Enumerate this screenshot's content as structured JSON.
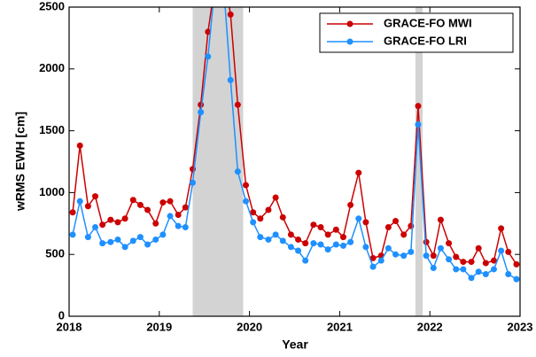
{
  "chart_data": {
    "type": "line",
    "x_label": "Year",
    "y_label": "wRMS EWH [cm]",
    "x": [
      2018.04,
      2018.12,
      2018.21,
      2018.29,
      2018.37,
      2018.46,
      2018.54,
      2018.62,
      2018.71,
      2018.79,
      2018.87,
      2018.96,
      2019.04,
      2019.12,
      2019.21,
      2019.29,
      2019.37,
      2019.46,
      2019.54,
      2019.62,
      2019.71,
      2019.79,
      2019.87,
      2019.96,
      2020.04,
      2020.12,
      2020.21,
      2020.29,
      2020.37,
      2020.46,
      2020.54,
      2020.62,
      2020.71,
      2020.79,
      2020.87,
      2020.96,
      2021.04,
      2021.12,
      2021.21,
      2021.29,
      2021.37,
      2021.46,
      2021.54,
      2021.62,
      2021.71,
      2021.79,
      2021.87,
      2021.96,
      2022.04,
      2022.12,
      2022.21,
      2022.29,
      2022.37,
      2022.46,
      2022.54,
      2022.62,
      2022.71,
      2022.79,
      2022.87,
      2022.96
    ],
    "series": [
      {
        "name": "GRACE-FO MWI",
        "color": "#cc0000",
        "values": [
          840,
          1380,
          890,
          970,
          740,
          780,
          760,
          790,
          940,
          900,
          860,
          750,
          920,
          930,
          820,
          880,
          1190,
          1710,
          2300,
          2700,
          2800,
          2440,
          1710,
          1060,
          840,
          790,
          860,
          960,
          800,
          660,
          620,
          590,
          740,
          720,
          660,
          700,
          640,
          900,
          1160,
          760,
          470,
          490,
          720,
          770,
          660,
          730,
          1700,
          600,
          490,
          780,
          590,
          480,
          440,
          440,
          550,
          430,
          450,
          710,
          520,
          420
        ]
      },
      {
        "name": "GRACE-FO LRI",
        "color": "#1e90ff",
        "values": [
          660,
          930,
          640,
          720,
          590,
          600,
          620,
          560,
          610,
          640,
          580,
          620,
          660,
          810,
          730,
          720,
          1080,
          1650,
          2100,
          2700,
          2700,
          1910,
          1170,
          930,
          760,
          640,
          620,
          660,
          610,
          560,
          530,
          450,
          590,
          580,
          540,
          580,
          570,
          600,
          790,
          560,
          400,
          450,
          550,
          500,
          490,
          520,
          1550,
          490,
          390,
          550,
          460,
          380,
          380,
          310,
          360,
          340,
          380,
          530,
          340,
          300
        ]
      }
    ],
    "shaded_regions": [
      [
        2019.37,
        2019.93
      ],
      [
        2021.84,
        2021.92
      ]
    ],
    "shade_color": "#d3d3d3",
    "xlim": [
      2018,
      2023
    ],
    "xticks": [
      2018,
      2019,
      2020,
      2021,
      2022,
      2023
    ],
    "ylim": [
      0,
      2500
    ],
    "yticks": [
      0,
      500,
      1000,
      1500,
      2000,
      2500
    ],
    "grid": false,
    "legend": "upper right"
  }
}
